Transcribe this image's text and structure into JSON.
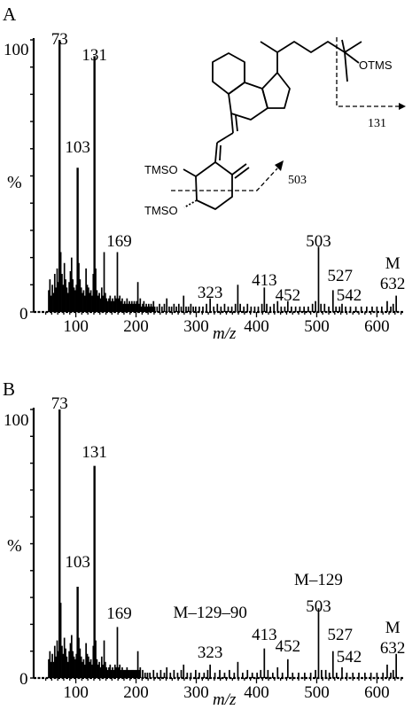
{
  "chart_data": [
    {
      "type": "bar",
      "panel_label": "A",
      "xlabel": "m/z",
      "ylabel": "%",
      "xlim": [
        30,
        645
      ],
      "ylim": [
        0,
        100
      ],
      "x_ticks": [
        100,
        200,
        300,
        400,
        500,
        600
      ],
      "y_ticks": [
        {
          "value": 0,
          "label": "0"
        },
        {
          "value": 100,
          "label": "100"
        }
      ],
      "peaks": [
        [
          55,
          8
        ],
        [
          57,
          12
        ],
        [
          59,
          6
        ],
        [
          61,
          10
        ],
        [
          63,
          7
        ],
        [
          65,
          14
        ],
        [
          67,
          9
        ],
        [
          69,
          16
        ],
        [
          71,
          11
        ],
        [
          73,
          100
        ],
        [
          75,
          22
        ],
        [
          77,
          14
        ],
        [
          79,
          10
        ],
        [
          81,
          18
        ],
        [
          83,
          12
        ],
        [
          85,
          9
        ],
        [
          87,
          7
        ],
        [
          89,
          11
        ],
        [
          91,
          15
        ],
        [
          93,
          20
        ],
        [
          95,
          12
        ],
        [
          97,
          9
        ],
        [
          99,
          8
        ],
        [
          101,
          10
        ],
        [
          103,
          53
        ],
        [
          105,
          18
        ],
        [
          107,
          12
        ],
        [
          109,
          9
        ],
        [
          111,
          7
        ],
        [
          113,
          8
        ],
        [
          115,
          6
        ],
        [
          117,
          16
        ],
        [
          119,
          10
        ],
        [
          121,
          9
        ],
        [
          123,
          7
        ],
        [
          125,
          8
        ],
        [
          127,
          6
        ],
        [
          129,
          14
        ],
        [
          131,
          94
        ],
        [
          133,
          16
        ],
        [
          135,
          8
        ],
        [
          137,
          6
        ],
        [
          139,
          7
        ],
        [
          141,
          5
        ],
        [
          143,
          9
        ],
        [
          145,
          6
        ],
        [
          147,
          22
        ],
        [
          149,
          7
        ],
        [
          151,
          5
        ],
        [
          153,
          4
        ],
        [
          155,
          5
        ],
        [
          157,
          6
        ],
        [
          159,
          4
        ],
        [
          161,
          5
        ],
        [
          163,
          4
        ],
        [
          165,
          6
        ],
        [
          167,
          5
        ],
        [
          169,
          22
        ],
        [
          171,
          5
        ],
        [
          173,
          6
        ],
        [
          175,
          4
        ],
        [
          177,
          5
        ],
        [
          179,
          3
        ],
        [
          181,
          4
        ],
        [
          183,
          3
        ],
        [
          185,
          5
        ],
        [
          187,
          3
        ],
        [
          189,
          4
        ],
        [
          191,
          3
        ],
        [
          193,
          4
        ],
        [
          195,
          3
        ],
        [
          197,
          4
        ],
        [
          199,
          3
        ],
        [
          201,
          4
        ],
        [
          203,
          11
        ],
        [
          205,
          3
        ],
        [
          207,
          5
        ],
        [
          209,
          2
        ],
        [
          211,
          3
        ],
        [
          213,
          4
        ],
        [
          215,
          2
        ],
        [
          217,
          3
        ],
        [
          219,
          2
        ],
        [
          221,
          3
        ],
        [
          223,
          2
        ],
        [
          225,
          3
        ],
        [
          227,
          2
        ],
        [
          229,
          4
        ],
        [
          231,
          2
        ],
        [
          235,
          2
        ],
        [
          239,
          3
        ],
        [
          243,
          2
        ],
        [
          247,
          3
        ],
        [
          251,
          5
        ],
        [
          255,
          2
        ],
        [
          259,
          2
        ],
        [
          263,
          3
        ],
        [
          267,
          2
        ],
        [
          271,
          3
        ],
        [
          275,
          2
        ],
        [
          279,
          6
        ],
        [
          283,
          2
        ],
        [
          287,
          2
        ],
        [
          291,
          3
        ],
        [
          295,
          2
        ],
        [
          299,
          2
        ],
        [
          305,
          2
        ],
        [
          311,
          2
        ],
        [
          317,
          3
        ],
        [
          323,
          5
        ],
        [
          329,
          2
        ],
        [
          335,
          3
        ],
        [
          341,
          2
        ],
        [
          347,
          3
        ],
        [
          353,
          2
        ],
        [
          359,
          2
        ],
        [
          365,
          3
        ],
        [
          369,
          10
        ],
        [
          373,
          3
        ],
        [
          379,
          2
        ],
        [
          385,
          3
        ],
        [
          391,
          2
        ],
        [
          397,
          2
        ],
        [
          403,
          2
        ],
        [
          409,
          3
        ],
        [
          413,
          9
        ],
        [
          417,
          3
        ],
        [
          423,
          2
        ],
        [
          429,
          3
        ],
        [
          435,
          4
        ],
        [
          441,
          2
        ],
        [
          447,
          2
        ],
        [
          452,
          4
        ],
        [
          458,
          2
        ],
        [
          465,
          2
        ],
        [
          472,
          2
        ],
        [
          479,
          2
        ],
        [
          486,
          2
        ],
        [
          493,
          3
        ],
        [
          498,
          4
        ],
        [
          503,
          24
        ],
        [
          507,
          3
        ],
        [
          513,
          3
        ],
        [
          520,
          2
        ],
        [
          527,
          8
        ],
        [
          532,
          2
        ],
        [
          538,
          2
        ],
        [
          542,
          3
        ],
        [
          548,
          2
        ],
        [
          556,
          2
        ],
        [
          565,
          2
        ],
        [
          574,
          2
        ],
        [
          583,
          2
        ],
        [
          592,
          2
        ],
        [
          600,
          2
        ],
        [
          608,
          2
        ],
        [
          617,
          4
        ],
        [
          623,
          2
        ],
        [
          627,
          3
        ],
        [
          632,
          6
        ]
      ],
      "peak_labels": [
        {
          "x": 73,
          "text": "73"
        },
        {
          "x": 103,
          "text": "103"
        },
        {
          "x": 131,
          "text": "131"
        },
        {
          "x": 169,
          "text": "169"
        },
        {
          "x": 323,
          "text": "323"
        },
        {
          "x": 413,
          "text": "413"
        },
        {
          "x": 452,
          "text": "452"
        },
        {
          "x": 503,
          "text": "503"
        },
        {
          "x": 527,
          "text": "527"
        },
        {
          "x": 542,
          "text": "542"
        },
        {
          "x": 632,
          "text": "632"
        },
        {
          "x": 632,
          "text": "M"
        }
      ],
      "structure": {
        "labels": [
          "OTMS",
          "TMSO",
          "TMSO"
        ],
        "fragments": [
          "131",
          "503"
        ]
      }
    },
    {
      "type": "bar",
      "panel_label": "B",
      "xlabel": "m/z",
      "ylabel": "%",
      "xlim": [
        30,
        645
      ],
      "ylim": [
        0,
        100
      ],
      "x_ticks": [
        100,
        200,
        300,
        400,
        500,
        600
      ],
      "y_ticks": [
        {
          "value": 0,
          "label": "0"
        },
        {
          "value": 100,
          "label": "100"
        }
      ],
      "peaks": [
        [
          55,
          7
        ],
        [
          57,
          10
        ],
        [
          59,
          6
        ],
        [
          61,
          9
        ],
        [
          63,
          6
        ],
        [
          65,
          12
        ],
        [
          67,
          8
        ],
        [
          69,
          14
        ],
        [
          71,
          10
        ],
        [
          73,
          100
        ],
        [
          75,
          28
        ],
        [
          77,
          12
        ],
        [
          79,
          9
        ],
        [
          81,
          15
        ],
        [
          83,
          11
        ],
        [
          85,
          8
        ],
        [
          87,
          6
        ],
        [
          89,
          10
        ],
        [
          91,
          13
        ],
        [
          93,
          16
        ],
        [
          95,
          10
        ],
        [
          97,
          8
        ],
        [
          99,
          7
        ],
        [
          101,
          9
        ],
        [
          103,
          34
        ],
        [
          105,
          15
        ],
        [
          107,
          11
        ],
        [
          109,
          8
        ],
        [
          111,
          6
        ],
        [
          113,
          7
        ],
        [
          115,
          5
        ],
        [
          117,
          13
        ],
        [
          119,
          9
        ],
        [
          121,
          8
        ],
        [
          123,
          6
        ],
        [
          125,
          7
        ],
        [
          127,
          5
        ],
        [
          129,
          12
        ],
        [
          131,
          79
        ],
        [
          133,
          14
        ],
        [
          135,
          7
        ],
        [
          137,
          5
        ],
        [
          139,
          6
        ],
        [
          141,
          4
        ],
        [
          143,
          8
        ],
        [
          145,
          5
        ],
        [
          147,
          14
        ],
        [
          149,
          6
        ],
        [
          151,
          4
        ],
        [
          153,
          3
        ],
        [
          155,
          4
        ],
        [
          157,
          5
        ],
        [
          159,
          3
        ],
        [
          161,
          4
        ],
        [
          163,
          3
        ],
        [
          165,
          5
        ],
        [
          167,
          4
        ],
        [
          169,
          19
        ],
        [
          171,
          4
        ],
        [
          173,
          5
        ],
        [
          175,
          3
        ],
        [
          177,
          4
        ],
        [
          179,
          3
        ],
        [
          181,
          3
        ],
        [
          183,
          3
        ],
        [
          185,
          4
        ],
        [
          187,
          3
        ],
        [
          189,
          3
        ],
        [
          191,
          3
        ],
        [
          193,
          3
        ],
        [
          195,
          3
        ],
        [
          197,
          3
        ],
        [
          199,
          3
        ],
        [
          201,
          3
        ],
        [
          203,
          10
        ],
        [
          205,
          3
        ],
        [
          207,
          4
        ],
        [
          211,
          3
        ],
        [
          215,
          2
        ],
        [
          219,
          2
        ],
        [
          223,
          2
        ],
        [
          229,
          3
        ],
        [
          235,
          2
        ],
        [
          241,
          3
        ],
        [
          247,
          2
        ],
        [
          251,
          4
        ],
        [
          257,
          2
        ],
        [
          263,
          3
        ],
        [
          269,
          2
        ],
        [
          275,
          3
        ],
        [
          279,
          5
        ],
        [
          285,
          2
        ],
        [
          291,
          2
        ],
        [
          299,
          3
        ],
        [
          305,
          2
        ],
        [
          313,
          2
        ],
        [
          319,
          3
        ],
        [
          323,
          5
        ],
        [
          331,
          2
        ],
        [
          339,
          3
        ],
        [
          347,
          2
        ],
        [
          355,
          3
        ],
        [
          363,
          2
        ],
        [
          369,
          6
        ],
        [
          377,
          2
        ],
        [
          385,
          3
        ],
        [
          393,
          2
        ],
        [
          401,
          2
        ],
        [
          407,
          3
        ],
        [
          413,
          11
        ],
        [
          419,
          3
        ],
        [
          427,
          2
        ],
        [
          435,
          4
        ],
        [
          443,
          2
        ],
        [
          452,
          7
        ],
        [
          460,
          2
        ],
        [
          470,
          2
        ],
        [
          480,
          2
        ],
        [
          490,
          2
        ],
        [
          498,
          3
        ],
        [
          503,
          26
        ],
        [
          508,
          3
        ],
        [
          515,
          3
        ],
        [
          521,
          2
        ],
        [
          527,
          10
        ],
        [
          533,
          2
        ],
        [
          542,
          4
        ],
        [
          550,
          2
        ],
        [
          560,
          2
        ],
        [
          570,
          2
        ],
        [
          580,
          2
        ],
        [
          590,
          2
        ],
        [
          600,
          2
        ],
        [
          610,
          2
        ],
        [
          617,
          5
        ],
        [
          623,
          2
        ],
        [
          627,
          3
        ],
        [
          632,
          9
        ]
      ],
      "peak_labels": [
        {
          "x": 73,
          "text": "73"
        },
        {
          "x": 103,
          "text": "103"
        },
        {
          "x": 131,
          "text": "131"
        },
        {
          "x": 169,
          "text": "169"
        },
        {
          "x": 323,
          "text": "323"
        },
        {
          "x": 323,
          "text": "M–129–90"
        },
        {
          "x": 413,
          "text": "413"
        },
        {
          "x": 452,
          "text": "452"
        },
        {
          "x": 503,
          "text": "503"
        },
        {
          "x": 503,
          "text": "M–129"
        },
        {
          "x": 527,
          "text": "527"
        },
        {
          "x": 542,
          "text": "542"
        },
        {
          "x": 632,
          "text": "632"
        },
        {
          "x": 632,
          "text": "M"
        }
      ]
    }
  ]
}
